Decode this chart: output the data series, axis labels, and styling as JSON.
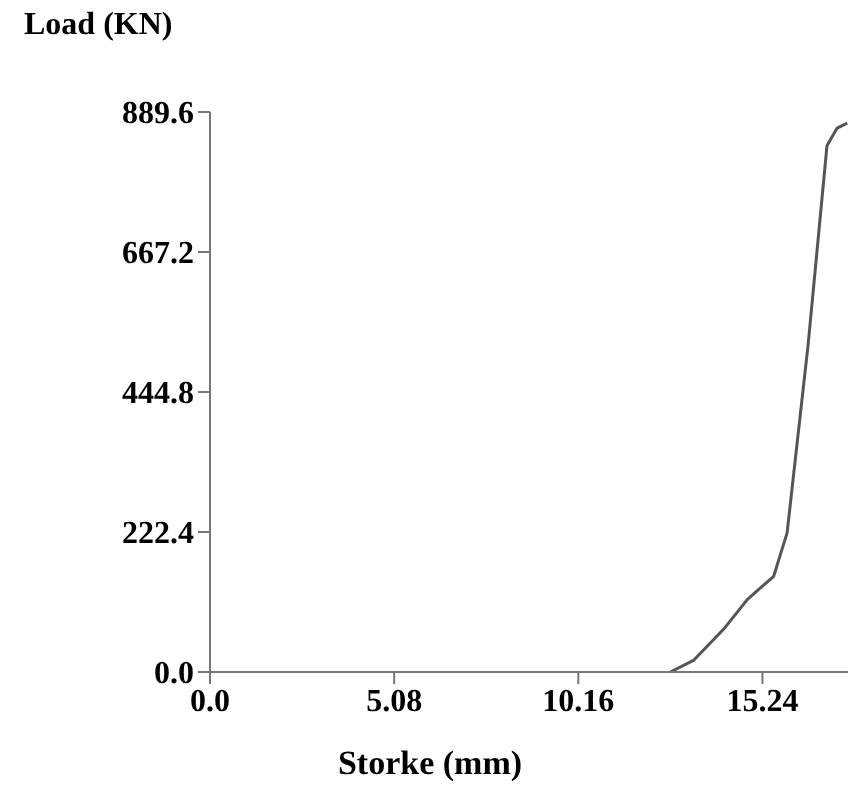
{
  "chart_data": {
    "type": "line",
    "ylabel": "Load (KN)",
    "xlabel": "Storke (mm)",
    "x": [
      12.7,
      13.35,
      14.2,
      14.82,
      15.55,
      15.92,
      16.5,
      17.02,
      17.3,
      17.58
    ],
    "series": [
      {
        "color": "#555555",
        "values": [
          0,
          19,
          70,
          115,
          152,
          221,
          520,
          836,
          864,
          872
        ]
      }
    ],
    "xlim": [
      0,
      17.6
    ],
    "xticks": [
      {
        "value": 0,
        "label": "0.0"
      },
      5.08,
      10.16,
      15.24
    ],
    "ylim": [
      0,
      889.6
    ],
    "yticks": [
      {
        "value": 0,
        "label": "0.0"
      },
      222.4,
      444.8,
      667.2,
      889.6
    ],
    "grid": false,
    "marker": "none",
    "line_style": "solid"
  }
}
